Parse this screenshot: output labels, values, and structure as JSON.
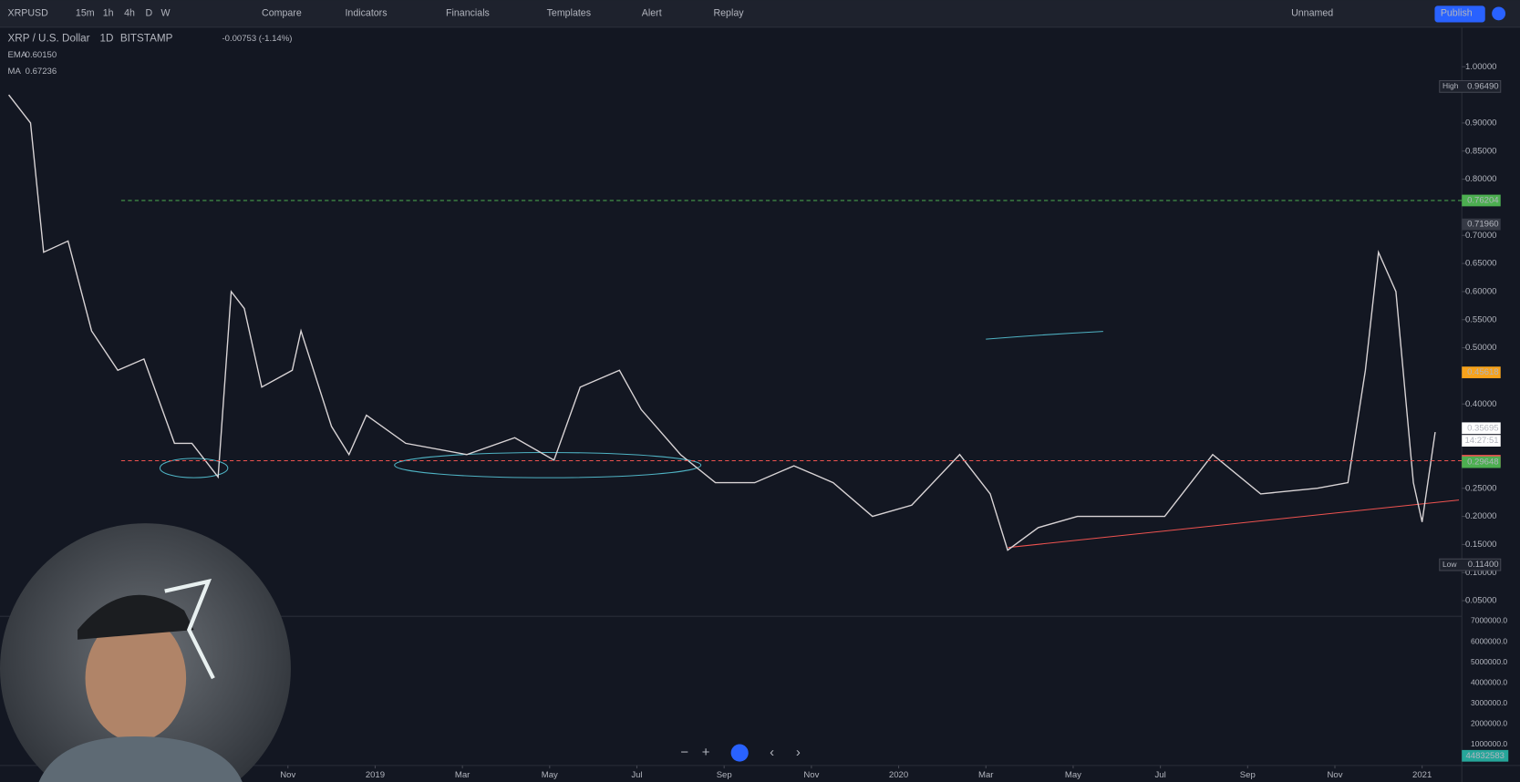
{
  "toolbar": {
    "symbol": "XRPUSD",
    "intervals": [
      "15m",
      "1h",
      "4h",
      "D",
      "W"
    ],
    "buttons": [
      "Compare",
      "Indicators",
      "Financials",
      "Templates",
      "Alert",
      "Replay"
    ],
    "layout_name": "Unnamed",
    "publish": "Publish"
  },
  "legend": {
    "title": "XRP / U.S. Dollar",
    "interval": "1D",
    "exchange": "BITSTAMP",
    "change": "-0.00753 (-1.14%)",
    "indicators": [
      {
        "name": "EMA",
        "value": "0.60150",
        "color": "#ef5350"
      },
      {
        "name": "MA",
        "value": "0.67236",
        "color": "#f7a21b"
      }
    ]
  },
  "chart_data": {
    "type": "line",
    "color": "#d9d4d6",
    "x": [
      3.6,
      4.1,
      4.4,
      4.96,
      5.5,
      6.1,
      6.7,
      7.4,
      7.8,
      8.4,
      8.7,
      9.0,
      9.4,
      10.1,
      10.3,
      11.0,
      11.4,
      11.8,
      12.7,
      14.1,
      15.2,
      16.1,
      16.7,
      17.6,
      18.1,
      19.0,
      19.8,
      20.7,
      21.6,
      22.5,
      23.4,
      24.3,
      25.4,
      26.1,
      26.5,
      27.2,
      28.1,
      29.2,
      30.1,
      31.2,
      32.3,
      33.6,
      34.3,
      34.7,
      35.0,
      35.4,
      35.8,
      36.0,
      36.3
    ],
    "values": [
      0.95,
      0.9,
      0.67,
      0.69,
      0.53,
      0.46,
      0.48,
      0.33,
      0.33,
      0.27,
      0.6,
      0.57,
      0.43,
      0.46,
      0.53,
      0.36,
      0.31,
      0.38,
      0.33,
      0.31,
      0.34,
      0.3,
      0.43,
      0.46,
      0.39,
      0.31,
      0.26,
      0.26,
      0.29,
      0.26,
      0.2,
      0.22,
      0.31,
      0.24,
      0.14,
      0.18,
      0.2,
      0.2,
      0.2,
      0.31,
      0.24,
      0.25,
      0.26,
      0.46,
      0.67,
      0.6,
      0.26,
      0.19,
      0.35
    ],
    "xlim": [
      3.4,
      36.91
    ],
    "ylim": [
      0.024,
      1.067
    ],
    "xticks": [
      {
        "value": 10,
        "label": "Nov"
      },
      {
        "value": 12,
        "label": "2019"
      },
      {
        "value": 14,
        "label": "Mar"
      },
      {
        "value": 16,
        "label": "May"
      },
      {
        "value": 18,
        "label": "Jul"
      },
      {
        "value": 20,
        "label": "Sep"
      },
      {
        "value": 22,
        "label": "Nov"
      },
      {
        "value": 24,
        "label": "2020"
      },
      {
        "value": 26,
        "label": "Mar"
      },
      {
        "value": 28,
        "label": "May"
      },
      {
        "value": 30,
        "label": "Jul"
      },
      {
        "value": 32,
        "label": "Sep"
      },
      {
        "value": 34,
        "label": "Nov"
      },
      {
        "value": 36,
        "label": "2021"
      }
    ],
    "yticks": [
      {
        "value": 1,
        "label": "1.00000"
      },
      {
        "value": 0.9,
        "label": "0.90000"
      },
      {
        "value": 0.85,
        "label": "0.85000"
      },
      {
        "value": 0.8,
        "label": "0.80000"
      },
      {
        "value": 0.7,
        "label": "0.70000"
      },
      {
        "value": 0.65,
        "label": "0.65000"
      },
      {
        "value": 0.6,
        "label": "0.60000"
      },
      {
        "value": 0.55,
        "label": "0.55000"
      },
      {
        "value": 0.5,
        "label": "0.50000"
      },
      {
        "value": 0.4,
        "label": "0.40000"
      },
      {
        "value": 0.25,
        "label": "0.25000"
      },
      {
        "value": 0.2,
        "label": "0.20000"
      },
      {
        "value": 0.15,
        "label": "0.15000"
      },
      {
        "value": 0.1,
        "label": "0.10000"
      },
      {
        "value": 0.05,
        "label": "0.05000"
      }
    ],
    "price_tags": [
      {
        "title": "High",
        "value": 0.9649,
        "label": "0.96490",
        "color": "#1e222d"
      },
      {
        "value": 0.76204,
        "color": "#4caf50",
        "dashed": true
      },
      {
        "value": 0.7196,
        "label": "0.71960",
        "color": "#363a45"
      },
      {
        "value": 0.45618,
        "color": "#f7a21b"
      },
      {
        "value": 0.35695,
        "color": "#ffffff"
      },
      {
        "value": 0.29908,
        "color": "#ef5350",
        "dashed": true
      },
      {
        "value": 0.29648,
        "color": "#4caf50"
      },
      {
        "title": "Low",
        "value": 0.114,
        "label": "0.11400",
        "color": "#1e222d"
      }
    ],
    "countdown": "14:27:51",
    "volume_ticks": [
      "7000000.0",
      "6000000.0",
      "5000000.0",
      "4000000.0",
      "3000000.0",
      "2000000.0",
      "1000000.0"
    ],
    "volume_last": "44832583"
  }
}
